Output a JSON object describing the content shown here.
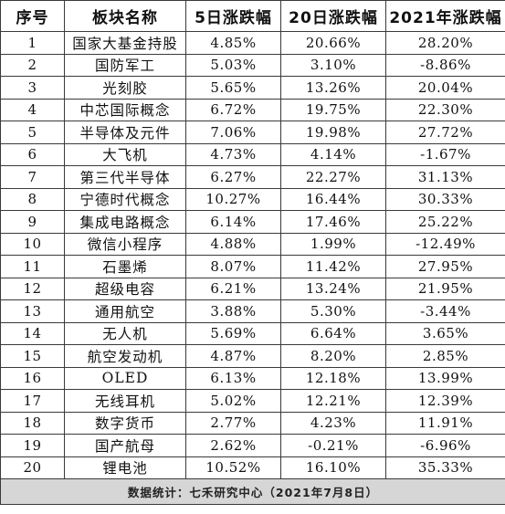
{
  "headers": [
    "序号",
    "板块名称",
    "5日涨跌幅",
    "20日涨跌幅",
    "2021年涨跌幅"
  ],
  "rows": [
    [
      "1",
      "国家大基金持股",
      "4.85%",
      "20.66%",
      "28.20%"
    ],
    [
      "2",
      "国防军工",
      "5.03%",
      "3.10%",
      "-8.86%"
    ],
    [
      "3",
      "光刻胶",
      "5.65%",
      "13.26%",
      "20.04%"
    ],
    [
      "4",
      "中芯国际概念",
      "6.72%",
      "19.75%",
      "22.30%"
    ],
    [
      "5",
      "半导体及元件",
      "7.06%",
      "19.98%",
      "27.72%"
    ],
    [
      "6",
      "大飞机",
      "4.73%",
      "4.14%",
      "-1.67%"
    ],
    [
      "7",
      "第三代半导体",
      "6.27%",
      "22.27%",
      "31.13%"
    ],
    [
      "8",
      "宁德时代概念",
      "10.27%",
      "16.44%",
      "30.33%"
    ],
    [
      "9",
      "集成电路概念",
      "6.14%",
      "17.46%",
      "25.22%"
    ],
    [
      "10",
      "微信小程序",
      "4.88%",
      "1.99%",
      "-12.49%"
    ],
    [
      "11",
      "石墨烯",
      "8.07%",
      "11.42%",
      "27.95%"
    ],
    [
      "12",
      "超级电容",
      "6.21%",
      "13.24%",
      "21.95%"
    ],
    [
      "13",
      "通用航空",
      "3.88%",
      "5.30%",
      "-3.44%"
    ],
    [
      "14",
      "无人机",
      "5.69%",
      "6.64%",
      "3.65%"
    ],
    [
      "15",
      "航空发动机",
      "4.87%",
      "8.20%",
      "2.85%"
    ],
    [
      "16",
      "OLED",
      "6.13%",
      "12.18%",
      "13.99%"
    ],
    [
      "17",
      "无线耳机",
      "5.02%",
      "12.21%",
      "12.39%"
    ],
    [
      "18",
      "数字货币",
      "2.77%",
      "4.23%",
      "11.91%"
    ],
    [
      "19",
      "国产航母",
      "2.62%",
      "-0.21%",
      "-6.96%"
    ],
    [
      "20",
      "锂电池",
      "10.52%",
      "16.10%",
      "35.33%"
    ]
  ],
  "footer": "数据统计：七禾研究中心（2021年7月8日）"
}
